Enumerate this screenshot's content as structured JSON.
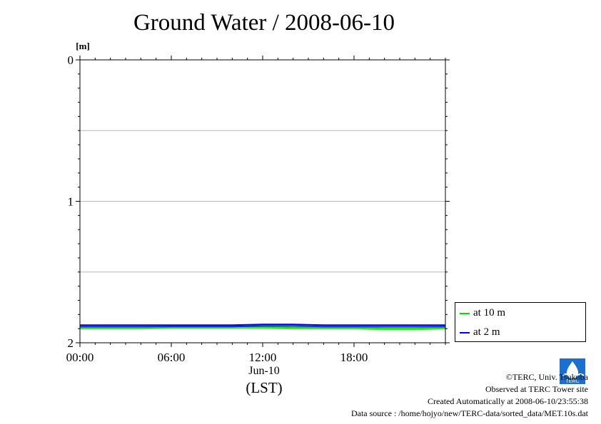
{
  "chart_data": {
    "type": "line",
    "title": "Ground Water / 2008-06-10",
    "ylabel": "[m]",
    "ylim": [
      0,
      2
    ],
    "y_inverted": true,
    "y_ticks": [
      "0",
      "1",
      "2"
    ],
    "y_grid": [
      0.5,
      1,
      1.5
    ],
    "xlim": [
      "00:00",
      "24:00"
    ],
    "x_ticks": [
      "00:00",
      "06:00",
      "12:00",
      "18:00"
    ],
    "x_date_label": "Jun-10",
    "x_tz_label": "(LST)",
    "grid": true,
    "legend_position": "right, outside plot",
    "series": [
      {
        "name": "at 10 m",
        "color": "#00e000",
        "x": [
          "00:00",
          "02:00",
          "04:00",
          "06:00",
          "08:00",
          "10:00",
          "12:00",
          "14:00",
          "16:00",
          "18:00",
          "20:00",
          "22:00",
          "24:00"
        ],
        "values": [
          1.89,
          1.89,
          1.89,
          1.885,
          1.885,
          1.885,
          1.885,
          1.89,
          1.89,
          1.89,
          1.895,
          1.895,
          1.89
        ]
      },
      {
        "name": "at 2 m",
        "color": "#0000ee",
        "x": [
          "00:00",
          "02:00",
          "04:00",
          "06:00",
          "08:00",
          "10:00",
          "12:00",
          "14:00",
          "16:00",
          "18:00",
          "20:00",
          "22:00",
          "24:00"
        ],
        "values": [
          1.875,
          1.875,
          1.875,
          1.875,
          1.875,
          1.875,
          1.87,
          1.87,
          1.875,
          1.875,
          1.875,
          1.875,
          1.875
        ]
      }
    ]
  },
  "credits": {
    "copyright": "©TERC, Univ. Tsukuba",
    "site": "Observed at TERC Tower site",
    "created": "Created Automatically at 2008-06-10/23:55:38",
    "source": "Data source : /home/hojyo/new/TERC-data/sorted_data/MET.10s.dat"
  },
  "logo": {
    "text": "TERC",
    "color": "#1a6fd1"
  }
}
